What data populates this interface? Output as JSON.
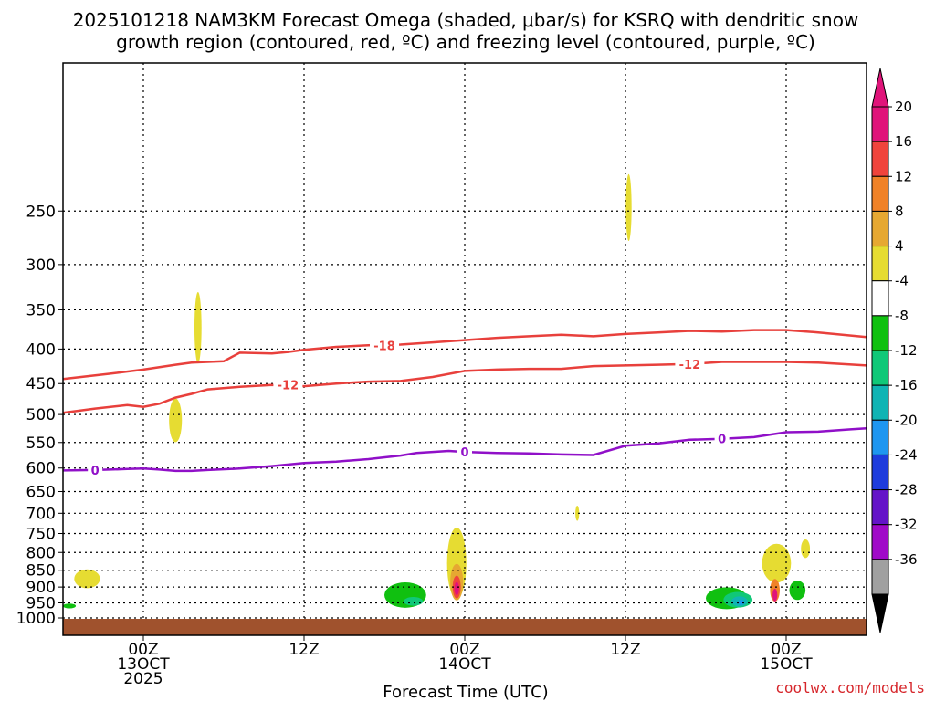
{
  "chart_data": {
    "type": "heatmap",
    "title_line1": "2025101218 NAM3KM Forecast Omega (shaded, μbar/s) for KSRQ with dendritic snow",
    "title_line2": "growth region (contoured, red, ºC) and freezing level (contoured, purple, ºC)",
    "xlabel": "Forecast Time (UTC)",
    "credit": "coolwx.com/models",
    "x_range_hours": [
      -5,
      45
    ],
    "p_range_hpa": [
      1000,
      150
    ],
    "y_ticks": [
      250,
      300,
      350,
      400,
      450,
      500,
      550,
      600,
      650,
      700,
      750,
      800,
      850,
      900,
      950,
      1000
    ],
    "x_ticks": [
      {
        "hour": 0,
        "label": "00Z",
        "date": "13OCT",
        "year": "2025"
      },
      {
        "hour": 10,
        "label": "12Z",
        "date": "",
        "year": ""
      },
      {
        "hour": 20,
        "label": "00Z",
        "date": "14OCT",
        "year": ""
      },
      {
        "hour": 30,
        "label": "12Z",
        "date": "",
        "year": ""
      },
      {
        "hour": 40,
        "label": "00Z",
        "date": "15OCT",
        "year": ""
      }
    ],
    "colorbar": {
      "labels": [
        "20",
        "16",
        "12",
        "8",
        "4",
        "-4",
        "-8",
        "-12",
        "-16",
        "-20",
        "-24",
        "-28",
        "-32",
        "-36"
      ],
      "levels": [
        {
          "lo": 20,
          "hi": 24,
          "color": "#e0147a"
        },
        {
          "lo": 16,
          "hi": 20,
          "color": "#f0443c"
        },
        {
          "lo": 12,
          "hi": 16,
          "color": "#f08228"
        },
        {
          "lo": 8,
          "hi": 12,
          "color": "#e6a832"
        },
        {
          "lo": 4,
          "hi": 8,
          "color": "#e6dc32"
        },
        {
          "lo": -4,
          "hi": 4,
          "color": "#ffffff"
        },
        {
          "lo": -8,
          "hi": -4,
          "color": "#10c010"
        },
        {
          "lo": -12,
          "hi": -8,
          "color": "#10c878"
        },
        {
          "lo": -16,
          "hi": -12,
          "color": "#10b4b4"
        },
        {
          "lo": -20,
          "hi": -16,
          "color": "#1e96f0"
        },
        {
          "lo": -24,
          "hi": -20,
          "color": "#1e3cdc"
        },
        {
          "lo": -28,
          "hi": -24,
          "color": "#6414c8"
        },
        {
          "lo": -32,
          "hi": -28,
          "color": "#a00ac8"
        },
        {
          "lo": -36,
          "hi": -32,
          "color": "#a0a0a0"
        }
      ]
    },
    "series": [
      {
        "name": "-18",
        "kind": "dendritic",
        "color": "#e8403c",
        "hours": [
          -5,
          -2,
          0,
          2,
          3,
          4,
          5,
          6,
          8,
          9,
          10,
          11,
          12,
          14,
          16,
          18,
          20,
          22,
          24,
          26,
          28,
          30,
          32,
          34,
          36,
          38,
          40,
          42,
          45
        ],
        "values": [
          443,
          435,
          429,
          422,
          419,
          418,
          417,
          405,
          406,
          404,
          401,
          399,
          397,
          395,
          394,
          391,
          388,
          385,
          383,
          381,
          383,
          380,
          378,
          376,
          377,
          375,
          375,
          378,
          384
        ],
        "label_at": [
          15
        ]
      },
      {
        "name": "-12",
        "kind": "dendritic",
        "color": "#e8403c",
        "hours": [
          -5,
          -3,
          -1,
          0,
          1,
          2,
          3,
          4,
          6,
          8,
          10,
          12,
          14,
          16,
          18,
          20,
          22,
          24,
          26,
          28,
          30,
          32,
          34,
          36,
          38,
          40,
          42,
          45
        ],
        "values": [
          497,
          490,
          484,
          487,
          482,
          472,
          466,
          459,
          455,
          452,
          454,
          450,
          447,
          446,
          440,
          431,
          429,
          428,
          428,
          424,
          423,
          422,
          421,
          418,
          418,
          418,
          419,
          423
        ],
        "label_at": [
          9,
          34
        ]
      },
      {
        "name": "0",
        "kind": "freezing",
        "color": "#9010c8",
        "hours": [
          -5,
          -3,
          -1,
          0,
          1,
          2,
          3,
          4,
          6,
          8,
          10,
          12,
          14,
          16,
          17,
          18,
          19,
          20,
          22,
          24,
          26,
          28,
          30,
          32,
          34,
          36,
          38,
          40,
          42,
          44,
          45
        ],
        "values": [
          605,
          604,
          602,
          601,
          603,
          606,
          606,
          604,
          601,
          596,
          590,
          587,
          582,
          575,
          570,
          568,
          566,
          568,
          570,
          571,
          573,
          574,
          556,
          552,
          545,
          543,
          540,
          531,
          530,
          526,
          524
        ],
        "label_at": [
          -3,
          20,
          36
        ]
      }
    ],
    "omega_shapes": [
      {
        "hour": -3.5,
        "p": 875,
        "wh": 0.8,
        "wp": 28,
        "color": "#e6dc32"
      },
      {
        "hour": -4.6,
        "p": 960,
        "wh": 0.4,
        "wp": 8,
        "color": "#10c010"
      },
      {
        "hour": 2.0,
        "p": 510,
        "wh": 0.4,
        "wp": 38,
        "color": "#e6dc32"
      },
      {
        "hour": 3.4,
        "p": 372,
        "wh": 0.22,
        "wp": 45,
        "color": "#e6dc32"
      },
      {
        "hour": 30.2,
        "p": 247,
        "wh": 0.18,
        "wp": 28,
        "color": "#e6dc32"
      },
      {
        "hour": 27.0,
        "p": 700,
        "wh": 0.12,
        "wp": 18,
        "color": "#e6dc32"
      },
      {
        "hour": 36.3,
        "p": 935,
        "wh": 1.3,
        "wp": 35,
        "color": "#10c010"
      },
      {
        "hour": 37.0,
        "p": 940,
        "wh": 0.9,
        "wp": 25,
        "color": "#10c878"
      },
      {
        "hour": 37.1,
        "p": 945,
        "wh": 0.5,
        "wp": 16,
        "color": "#10b4b4"
      },
      {
        "hour": 37.2,
        "p": 948,
        "wh": 0.18,
        "wp": 8,
        "color": "#1e96f0"
      },
      {
        "hour": 16.3,
        "p": 925,
        "wh": 1.3,
        "wp": 40,
        "color": "#10c010"
      },
      {
        "hour": 16.8,
        "p": 945,
        "wh": 0.6,
        "wp": 14,
        "color": "#10c878"
      },
      {
        "hour": 39.4,
        "p": 830,
        "wh": 0.9,
        "wp": 55,
        "color": "#e6dc32"
      },
      {
        "hour": 39.3,
        "p": 910,
        "wh": 0.3,
        "wp": 35,
        "color": "#f08228"
      },
      {
        "hour": 39.3,
        "p": 925,
        "wh": 0.15,
        "wp": 20,
        "color": "#e0147a"
      },
      {
        "hour": 41.2,
        "p": 790,
        "wh": 0.28,
        "wp": 25,
        "color": "#e6dc32"
      },
      {
        "hour": 40.7,
        "p": 910,
        "wh": 0.5,
        "wp": 30,
        "color": "#10c010"
      },
      {
        "hour": 19.5,
        "p": 830,
        "wh": 0.6,
        "wp": 100,
        "color": "#e6dc32"
      },
      {
        "hour": 19.5,
        "p": 885,
        "wh": 0.4,
        "wp": 55,
        "color": "#e6a832"
      },
      {
        "hour": 19.5,
        "p": 900,
        "wh": 0.25,
        "wp": 35,
        "color": "#f0443c"
      },
      {
        "hour": 19.5,
        "p": 905,
        "wh": 0.15,
        "wp": 20,
        "color": "#e0147a"
      }
    ]
  }
}
